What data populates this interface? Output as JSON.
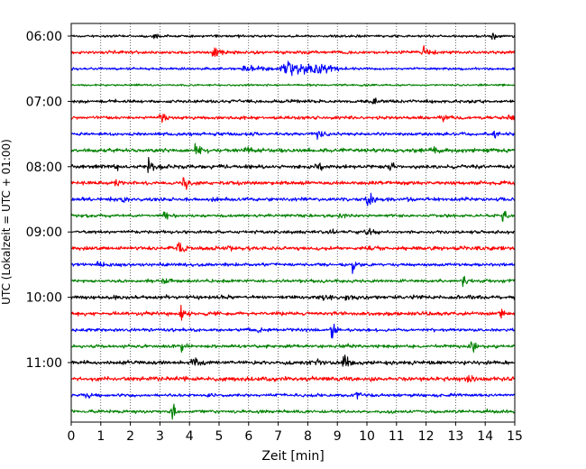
{
  "chart_data": {
    "type": "line",
    "subtype": "helicorder-seismogram",
    "title": "",
    "xlabel": "Zeit  [min]",
    "ylabel": "UTC (Lokalzeit = UTC + 01:00)",
    "xlim": [
      0,
      15
    ],
    "x_ticks": [
      "0",
      "1",
      "2",
      "3",
      "4",
      "5",
      "6",
      "7",
      "8",
      "9",
      "10",
      "11",
      "12",
      "13",
      "14",
      "15"
    ],
    "y_tick_labels": [
      "06:00",
      "07:00",
      "08:00",
      "09:00",
      "10:00",
      "11:00"
    ],
    "grid": "vertical dotted",
    "trace_interval_min": 15,
    "colors": [
      "#000000",
      "#ff0000",
      "#0000ff",
      "#008000"
    ],
    "traces": [
      {
        "start": "06:00",
        "color": "#000000",
        "amplitude": 2,
        "events": [
          {
            "t": 14.2,
            "a": 4
          },
          {
            "t": 2.8,
            "a": 2
          }
        ]
      },
      {
        "start": "06:15",
        "color": "#ff0000",
        "amplitude": 2.5,
        "events": [
          {
            "t": 4.8,
            "a": 11
          },
          {
            "t": 11.9,
            "a": 6
          }
        ]
      },
      {
        "start": "06:30",
        "color": "#0000ff",
        "amplitude": 2,
        "events": [
          {
            "t": 7.1,
            "a": 7,
            "dur": 1.3
          },
          {
            "t": 8.3,
            "a": 4,
            "dur": 0.6
          },
          {
            "t": 5.8,
            "a": 3,
            "dur": 0.8
          }
        ]
      },
      {
        "start": "06:45",
        "color": "#008000",
        "amplitude": 1.5,
        "events": []
      },
      {
        "start": "07:00",
        "color": "#000000",
        "amplitude": 2.5,
        "events": [
          {
            "t": 10.2,
            "a": 4
          },
          {
            "t": 7.5,
            "a": 2
          }
        ]
      },
      {
        "start": "07:15",
        "color": "#ff0000",
        "amplitude": 2.5,
        "events": [
          {
            "t": 3.0,
            "a": 8
          },
          {
            "t": 12.5,
            "a": 4
          },
          {
            "t": 14.8,
            "a": 3
          }
        ]
      },
      {
        "start": "07:30",
        "color": "#0000ff",
        "amplitude": 2.5,
        "events": [
          {
            "t": 8.3,
            "a": 5
          },
          {
            "t": 14.3,
            "a": 4
          }
        ]
      },
      {
        "start": "07:45",
        "color": "#008000",
        "amplitude": 3,
        "events": [
          {
            "t": 4.2,
            "a": 10
          },
          {
            "t": 5.9,
            "a": 4
          },
          {
            "t": 12.2,
            "a": 3
          }
        ]
      },
      {
        "start": "08:00",
        "color": "#000000",
        "amplitude": 3,
        "events": [
          {
            "t": 2.6,
            "a": 11
          },
          {
            "t": 1.5,
            "a": 4
          },
          {
            "t": 8.3,
            "a": 5
          },
          {
            "t": 10.8,
            "a": 3
          }
        ]
      },
      {
        "start": "08:15",
        "color": "#ff0000",
        "amplitude": 3,
        "events": [
          {
            "t": 3.8,
            "a": 10
          },
          {
            "t": 1.5,
            "a": 3
          }
        ]
      },
      {
        "start": "08:30",
        "color": "#0000ff",
        "amplitude": 3,
        "events": [
          {
            "t": 10.0,
            "a": 10
          },
          {
            "t": 1.7,
            "a": 4
          }
        ]
      },
      {
        "start": "08:45",
        "color": "#008000",
        "amplitude": 2.5,
        "events": [
          {
            "t": 14.6,
            "a": 10
          },
          {
            "t": 3.1,
            "a": 4
          },
          {
            "t": 9.1,
            "a": 3
          }
        ]
      },
      {
        "start": "09:00",
        "color": "#000000",
        "amplitude": 2.5,
        "events": [
          {
            "t": 10.0,
            "a": 5
          },
          {
            "t": 8.8,
            "a": 4
          }
        ]
      },
      {
        "start": "09:15",
        "color": "#ff0000",
        "amplitude": 3,
        "events": [
          {
            "t": 3.6,
            "a": 7
          },
          {
            "t": 5.3,
            "a": 2
          }
        ]
      },
      {
        "start": "09:30",
        "color": "#0000ff",
        "amplitude": 2.5,
        "events": [
          {
            "t": 9.5,
            "a": 9
          },
          {
            "t": 0.9,
            "a": 4
          }
        ]
      },
      {
        "start": "09:45",
        "color": "#008000",
        "amplitude": 2.5,
        "events": [
          {
            "t": 13.2,
            "a": 9
          },
          {
            "t": 3.1,
            "a": 3
          }
        ]
      },
      {
        "start": "10:00",
        "color": "#000000",
        "amplitude": 3,
        "events": [
          {
            "t": 8.5,
            "a": 4
          },
          {
            "t": 9.3,
            "a": 3
          }
        ]
      },
      {
        "start": "10:15",
        "color": "#ff0000",
        "amplitude": 3,
        "events": [
          {
            "t": 3.7,
            "a": 8
          },
          {
            "t": 14.5,
            "a": 4
          }
        ]
      },
      {
        "start": "10:30",
        "color": "#0000ff",
        "amplitude": 2.5,
        "events": [
          {
            "t": 8.8,
            "a": 7
          },
          {
            "t": 6.3,
            "a": 3
          }
        ]
      },
      {
        "start": "10:45",
        "color": "#008000",
        "amplitude": 2.5,
        "events": [
          {
            "t": 13.5,
            "a": 8
          },
          {
            "t": 3.7,
            "a": 5
          },
          {
            "t": 9.3,
            "a": 3
          }
        ]
      },
      {
        "start": "11:00",
        "color": "#000000",
        "amplitude": 3,
        "events": [
          {
            "t": 9.2,
            "a": 9
          },
          {
            "t": 4.1,
            "a": 6
          },
          {
            "t": 8.3,
            "a": 3
          }
        ]
      },
      {
        "start": "11:15",
        "color": "#ff0000",
        "amplitude": 3.5,
        "events": [
          {
            "t": 13.4,
            "a": 8
          },
          {
            "t": 3.8,
            "a": 3
          }
        ]
      },
      {
        "start": "11:30",
        "color": "#0000ff",
        "amplitude": 2.5,
        "events": [
          {
            "t": 9.6,
            "a": 4
          },
          {
            "t": 0.5,
            "a": 3
          }
        ]
      },
      {
        "start": "11:45",
        "color": "#008000",
        "amplitude": 2.5,
        "events": [
          {
            "t": 3.4,
            "a": 8
          },
          {
            "t": 14.0,
            "a": 3
          }
        ]
      }
    ]
  }
}
